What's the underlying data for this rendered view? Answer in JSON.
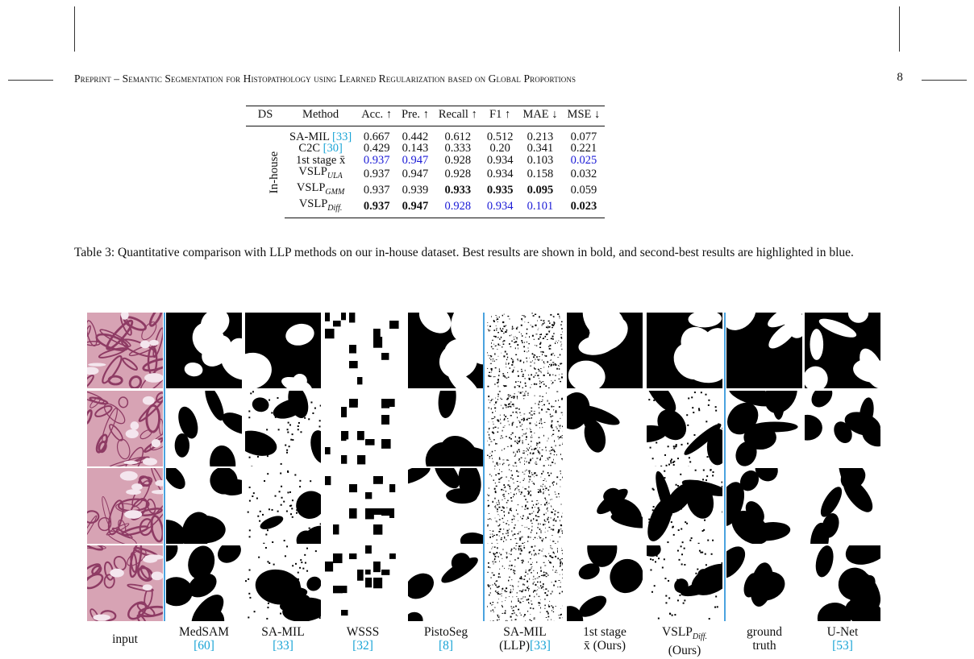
{
  "header": {
    "title": "Preprint – Semantic Segmentation for Histopathology using Learned Regularization based on Global Proportions",
    "page_number": "8"
  },
  "table": {
    "headers": [
      "DS",
      "Method",
      "Acc. ↑",
      "Pre. ↑",
      "Recall ↑",
      "F1 ↑",
      "MAE ↓",
      "MSE ↓"
    ],
    "ds_label": "In-house",
    "rows": [
      {
        "method": "SA-MIL",
        "cite": "[33]",
        "sub": "",
        "values": [
          "0.667",
          "0.442",
          "0.612",
          "0.512",
          "0.213",
          "0.077"
        ],
        "styles": [
          "",
          "",
          "",
          "",
          "",
          ""
        ]
      },
      {
        "method": "C2C",
        "cite": "[30]",
        "sub": "",
        "values": [
          "0.429",
          "0.143",
          "0.333",
          "0.20",
          "0.341",
          "0.221"
        ],
        "styles": [
          "",
          "",
          "",
          "",
          "",
          ""
        ]
      },
      {
        "method": "1st stage x̄",
        "cite": "",
        "sub": "",
        "values": [
          "0.937",
          "0.947",
          "0.928",
          "0.934",
          "0.103",
          "0.025"
        ],
        "styles": [
          "blue",
          "blue",
          "",
          "",
          "",
          "blue"
        ]
      },
      {
        "method": "VSLP",
        "cite": "",
        "sub": "ULA",
        "values": [
          "0.937",
          "0.947",
          "0.928",
          "0.934",
          "0.158",
          "0.032"
        ],
        "styles": [
          "",
          "",
          "",
          "",
          "",
          ""
        ]
      },
      {
        "method": "VSLP",
        "cite": "",
        "sub": "GMM",
        "values": [
          "0.937",
          "0.939",
          "0.933",
          "0.935",
          "0.095",
          "0.059"
        ],
        "styles": [
          "",
          "",
          "bold",
          "bold",
          "bold",
          ""
        ]
      },
      {
        "method": "VSLP",
        "cite": "",
        "sub": "Diff.",
        "values": [
          "0.937",
          "0.947",
          "0.928",
          "0.934",
          "0.101",
          "0.023"
        ],
        "styles": [
          "bold",
          "bold",
          "blue",
          "blue",
          "blue",
          "bold"
        ]
      }
    ]
  },
  "caption": "Table 3: Quantitative comparison with LLP methods on our in-house dataset. Best results are shown in bold, and second-best results are highlighted in blue.",
  "figure": {
    "columns": [
      {
        "line1": "input",
        "cite": ""
      },
      {
        "line1": "MedSAM",
        "cite": "[60]"
      },
      {
        "line1": "SA-MIL",
        "cite": "[33]"
      },
      {
        "line1": "WSSS",
        "cite": "[32]"
      },
      {
        "line1": "PistoSeg",
        "cite": "[8]"
      },
      {
        "line1": "SA-MIL",
        "line2": "(LLP)",
        "cite": "[33]"
      },
      {
        "line1": "1st stage",
        "line2": "x̄ (Ours)",
        "cite": ""
      },
      {
        "line1": "VSLP",
        "sub": "Diff.",
        "line2": "(Ours)",
        "cite": ""
      },
      {
        "line1": "ground",
        "line2": "truth",
        "cite": ""
      },
      {
        "line1": "U-Net",
        "cite": "[53]"
      }
    ]
  },
  "colors": {
    "citation": "#19a4d6",
    "second_best": "#1a1ad6",
    "separator": "#4aa3df"
  }
}
